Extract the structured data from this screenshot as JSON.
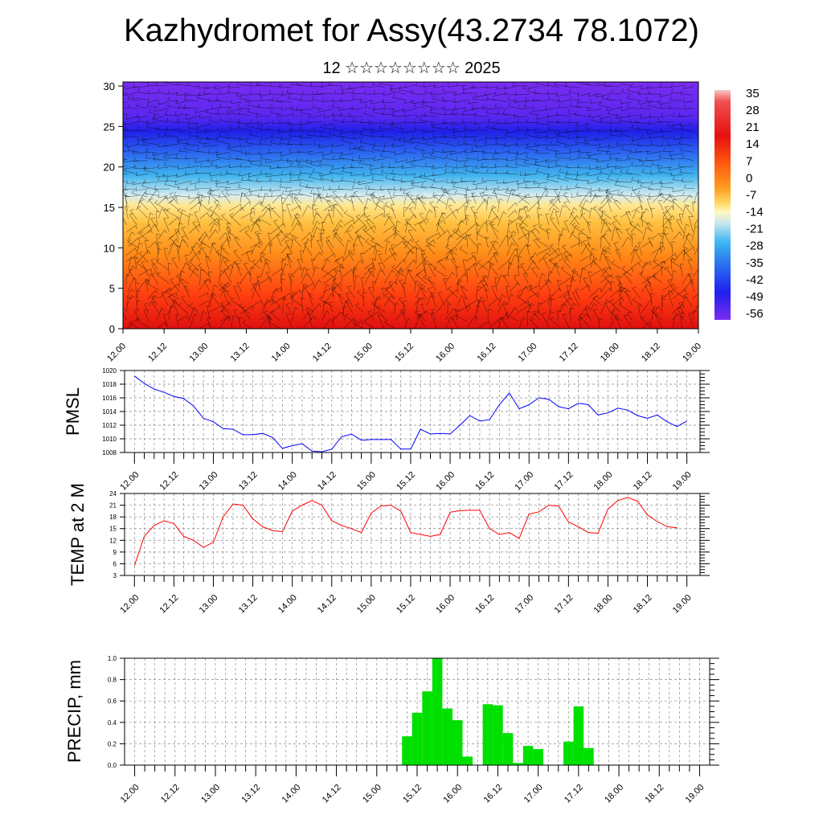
{
  "title": "Kazhydromet for Assy(43.2734 78.1072)",
  "subtitle": "12 ☆☆☆☆☆☆☆☆ 2025",
  "colors": {
    "pmsl_line": "#0000ff",
    "temp_line": "#ff0000",
    "precip_bar": "#00e000",
    "palette": [
      "#7a2cf0",
      "#3c18f0",
      "#2a4cf0",
      "#1fa8ee",
      "#7fd0f0",
      "#c8e6f0",
      "#fff0a0",
      "#ffd040",
      "#ff9a20",
      "#ff5010",
      "#e81010"
    ]
  },
  "chart_data": [
    {
      "type": "heatmap",
      "name": "profile",
      "y_ticks": [
        "0",
        "5",
        "10",
        "15",
        "20",
        "25",
        "30"
      ],
      "ylim": [
        0,
        30.5
      ],
      "x_ticks": [
        "12.00",
        "12.12",
        "13.00",
        "13.12",
        "14.00",
        "14.12",
        "15.00",
        "15.12",
        "16.00",
        "16.12",
        "17.00",
        "17.12",
        "18.00",
        "18.12",
        "19.00"
      ],
      "colorbar_labels": [
        "35",
        "28",
        "21",
        "14",
        "7",
        "0",
        "-7",
        "-14",
        "-21",
        "-28",
        "-35",
        "-42",
        "-49",
        "-56"
      ],
      "overlay": "wind barbs"
    },
    {
      "type": "line",
      "name": "pmsl",
      "ylabel": "PMSL",
      "ylim": [
        1008,
        1020
      ],
      "y_ticks": [
        "1008",
        "1010",
        "1012",
        "1014",
        "1016",
        "1018",
        "1020"
      ],
      "x_ticks": [
        "12.00",
        "12.12",
        "13.00",
        "13.12",
        "14.00",
        "14.12",
        "15.00",
        "15.12",
        "16.00",
        "16.12",
        "17.00",
        "17.12",
        "18.00",
        "18.12",
        "19.00"
      ],
      "step_hours": 3,
      "values": [
        1019.2,
        1018.1,
        1017.3,
        1016.8,
        1016.2,
        1015.9,
        1014.8,
        1013.0,
        1012.5,
        1011.5,
        1011.4,
        1010.6,
        1010.6,
        1010.8,
        1010.2,
        1008.6,
        1009.0,
        1009.3,
        1008.2,
        1008.1,
        1008.5,
        1010.3,
        1010.7,
        1009.8,
        1009.9,
        1009.9,
        1009.9,
        1008.5,
        1008.5,
        1011.4,
        1010.7,
        1010.8,
        1010.7,
        1012.0,
        1013.4,
        1012.6,
        1012.8,
        1015.0,
        1016.7,
        1014.4,
        1015.0,
        1016.0,
        1015.8,
        1014.7,
        1014.4,
        1015.2,
        1015.0,
        1013.5,
        1013.8,
        1014.5,
        1014.2,
        1013.4,
        1013.0,
        1013.5,
        1012.5,
        1011.8,
        1012.6
      ]
    },
    {
      "type": "line",
      "name": "temp",
      "ylabel": "TEMP at 2 M",
      "ylim": [
        3,
        24
      ],
      "y_ticks": [
        "3",
        "6",
        "9",
        "12",
        "15",
        "18",
        "21",
        "24"
      ],
      "x_ticks": [
        "12.00",
        "12.12",
        "13.00",
        "13.12",
        "14.00",
        "14.12",
        "15.00",
        "15.12",
        "16.00",
        "16.12",
        "17.00",
        "17.12",
        "18.00",
        "18.12",
        "19.00"
      ],
      "step_hours": 3,
      "values": [
        5.5,
        13.0,
        15.8,
        17.0,
        16.3,
        13.0,
        12.0,
        10.2,
        11.5,
        18.0,
        21.3,
        21.0,
        17.5,
        15.5,
        14.5,
        14.2,
        19.5,
        21.0,
        22.2,
        21.0,
        17.0,
        15.8,
        15.0,
        14.0,
        19.0,
        20.8,
        21.0,
        19.5,
        14.0,
        13.5,
        13.0,
        13.5,
        19.2,
        19.6,
        19.7,
        19.7,
        15.0,
        13.5,
        14.0,
        12.5,
        18.7,
        19.3,
        21.0,
        20.8,
        16.7,
        15.5,
        14.0,
        13.8,
        20.0,
        22.2,
        23.0,
        22.0,
        18.5,
        16.8,
        15.5,
        15.2
      ]
    },
    {
      "type": "bar",
      "name": "precip",
      "ylabel": "PRECIP, mm",
      "ylim": [
        0,
        1.0
      ],
      "y_ticks": [
        "0.0",
        "0.2",
        "0.4",
        "0.6",
        "0.8",
        "1.0"
      ],
      "x_ticks": [
        "12.00",
        "12.12",
        "13.00",
        "13.12",
        "14.00",
        "14.12",
        "15.00",
        "15.12",
        "16.00",
        "16.12",
        "17.00",
        "17.12",
        "18.00",
        "18.12",
        "19.00"
      ],
      "step_hours": 3,
      "values": [
        0,
        0,
        0,
        0,
        0,
        0,
        0,
        0,
        0,
        0,
        0,
        0,
        0,
        0,
        0,
        0,
        0,
        0,
        0,
        0,
        0,
        0,
        0,
        0,
        0,
        0,
        0,
        0.27,
        0.49,
        0.69,
        1.0,
        0.53,
        0.42,
        0.08,
        0,
        0.57,
        0.56,
        0.3,
        0.02,
        0.18,
        0.15,
        0,
        0,
        0.22,
        0.55,
        0.16,
        0,
        0,
        0,
        0,
        0,
        0,
        0,
        0,
        0,
        0
      ]
    }
  ]
}
